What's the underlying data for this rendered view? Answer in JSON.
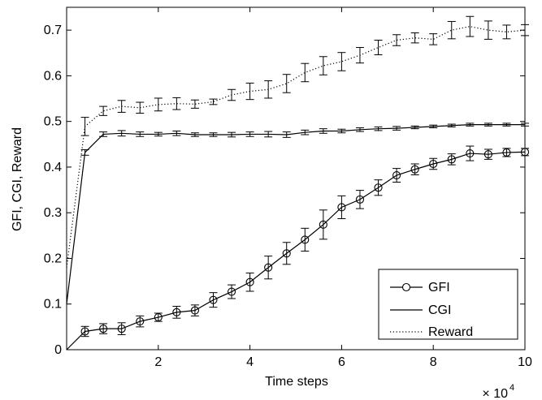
{
  "chart_data": {
    "type": "line",
    "xlabel": "Time steps",
    "ylabel": "GFI, CGI, Reward",
    "x_multiplier_label": "× 10",
    "x_multiplier_exponent": "4",
    "xlim": [
      0,
      10
    ],
    "ylim": [
      0,
      0.75
    ],
    "xticks": [
      2,
      4,
      6,
      8,
      10
    ],
    "yticks": [
      0,
      0.1,
      0.2,
      0.3,
      0.4,
      0.5,
      0.6,
      0.7
    ],
    "grid": false,
    "legend_position": "bottom-right",
    "x": [
      0,
      0.4,
      0.8,
      1.2,
      1.6,
      2.0,
      2.4,
      2.8,
      3.2,
      3.6,
      4.0,
      4.4,
      4.8,
      5.2,
      5.6,
      6.0,
      6.4,
      6.8,
      7.2,
      7.6,
      8.0,
      8.4,
      8.8,
      9.2,
      9.6,
      10.0
    ],
    "series": [
      {
        "name": "GFI",
        "style": "solid-circle",
        "color": "#000000",
        "values": [
          0,
          0.04,
          0.046,
          0.046,
          0.062,
          0.071,
          0.082,
          0.086,
          0.109,
          0.127,
          0.148,
          0.18,
          0.211,
          0.241,
          0.274,
          0.312,
          0.329,
          0.355,
          0.382,
          0.395,
          0.407,
          0.417,
          0.43,
          0.428,
          0.432,
          0.433
        ],
        "errors": [
          0,
          0.011,
          0.011,
          0.013,
          0.012,
          0.009,
          0.013,
          0.012,
          0.016,
          0.015,
          0.02,
          0.025,
          0.024,
          0.025,
          0.032,
          0.025,
          0.02,
          0.017,
          0.015,
          0.012,
          0.012,
          0.012,
          0.016,
          0.011,
          0.009,
          0.008
        ]
      },
      {
        "name": "CGI",
        "style": "solid",
        "color": "#000000",
        "values": [
          0.1,
          0.432,
          0.472,
          0.474,
          0.472,
          0.472,
          0.474,
          0.471,
          0.471,
          0.471,
          0.472,
          0.472,
          0.471,
          0.476,
          0.479,
          0.479,
          0.482,
          0.484,
          0.485,
          0.487,
          0.489,
          0.491,
          0.493,
          0.493,
          0.493,
          0.493
        ],
        "errors": [
          0,
          0.006,
          0.005,
          0.006,
          0.005,
          0.004,
          0.005,
          0.004,
          0.004,
          0.005,
          0.005,
          0.006,
          0.006,
          0.005,
          0.005,
          0.004,
          0.004,
          0.004,
          0.004,
          0.003,
          0.003,
          0.003,
          0.003,
          0.003,
          0.003,
          0.003
        ]
      },
      {
        "name": "Reward",
        "style": "dotted",
        "color": "#000000",
        "values": [
          0.18,
          0.489,
          0.523,
          0.533,
          0.53,
          0.537,
          0.539,
          0.538,
          0.543,
          0.558,
          0.566,
          0.57,
          0.583,
          0.607,
          0.622,
          0.631,
          0.645,
          0.662,
          0.678,
          0.683,
          0.68,
          0.7,
          0.708,
          0.7,
          0.696,
          0.7
        ],
        "errors": [
          0,
          0.02,
          0.01,
          0.013,
          0.012,
          0.014,
          0.013,
          0.009,
          0.006,
          0.012,
          0.018,
          0.019,
          0.02,
          0.02,
          0.02,
          0.02,
          0.017,
          0.016,
          0.012,
          0.011,
          0.012,
          0.019,
          0.022,
          0.02,
          0.015,
          0.012
        ]
      }
    ]
  }
}
